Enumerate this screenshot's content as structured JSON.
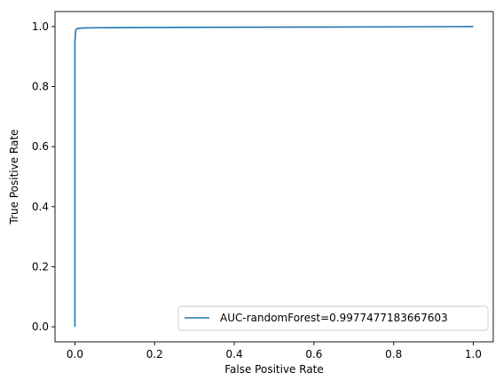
{
  "chart_data": {
    "type": "line",
    "title": "",
    "xlabel": "False Positive Rate",
    "ylabel": "True Positive Rate",
    "xlim": [
      -0.05,
      1.05
    ],
    "ylim": [
      -0.05,
      1.05
    ],
    "xticks": [
      0.0,
      0.2,
      0.4,
      0.6,
      0.8,
      1.0
    ],
    "yticks": [
      0.0,
      0.2,
      0.4,
      0.6,
      0.8,
      1.0
    ],
    "xtick_labels": [
      "0.0",
      "0.2",
      "0.4",
      "0.6",
      "0.8",
      "1.0"
    ],
    "ytick_labels": [
      "0.0",
      "0.2",
      "0.4",
      "0.6",
      "0.8",
      "1.0"
    ],
    "grid": false,
    "legend_position": "lower-right",
    "series": [
      {
        "name": "AUC-randomForest=0.9977477183667603",
        "color": "#1f77b4",
        "x": [
          0.0,
          0.0,
          0.002,
          0.004,
          0.008,
          0.02,
          0.05,
          0.2,
          0.5,
          0.8,
          1.0
        ],
        "y": [
          0.0,
          0.95,
          0.988,
          0.992,
          0.994,
          0.995,
          0.996,
          0.997,
          0.998,
          0.999,
          1.0
        ]
      }
    ]
  }
}
